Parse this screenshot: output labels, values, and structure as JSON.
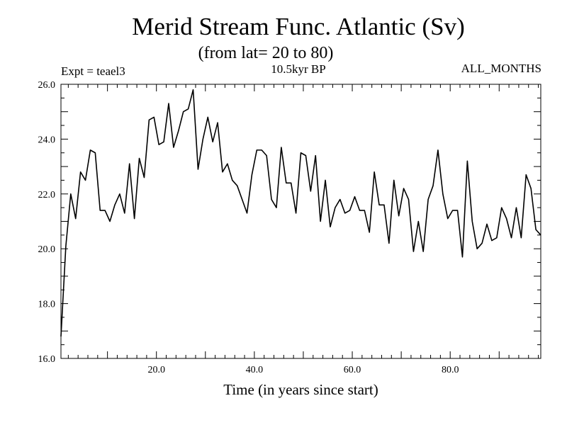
{
  "chart_data": {
    "type": "line",
    "title": "Merid Stream Func. Atlantic (Sv)",
    "subtitle": "(from lat= 20 to 80)",
    "experiment": "Expt = teael3",
    "period": "10.5kyr BP",
    "months": "ALL_MONTHS",
    "xlabel": "Time (in years since start)",
    "ylabel": "",
    "xlim": [
      0.5,
      98.5
    ],
    "ylim": [
      16.0,
      26.0
    ],
    "x_ticks": [
      20,
      40,
      60,
      80
    ],
    "x_tick_labels": [
      "20.0",
      "40.0",
      "60.0",
      "80.0"
    ],
    "y_ticks": [
      16,
      18,
      20,
      22,
      24,
      26
    ],
    "y_tick_labels": [
      "16.0",
      "18.0",
      "20.0",
      "22.0",
      "24.0",
      "26.0"
    ],
    "grid": false,
    "series": [
      {
        "name": "teael3",
        "x_start": 0.5,
        "x_step": 1,
        "values": [
          16.8,
          20.1,
          22.0,
          21.1,
          22.8,
          22.5,
          23.6,
          23.5,
          21.4,
          21.4,
          21.0,
          21.6,
          22.0,
          21.3,
          23.1,
          21.1,
          23.3,
          22.6,
          24.7,
          24.8,
          23.8,
          23.9,
          25.3,
          23.7,
          24.3,
          25.0,
          25.1,
          25.8,
          22.9,
          24.0,
          24.8,
          23.9,
          24.6,
          22.8,
          23.1,
          22.5,
          22.3,
          21.8,
          21.3,
          22.7,
          23.6,
          23.6,
          23.4,
          21.8,
          21.5,
          23.7,
          22.4,
          22.4,
          21.3,
          23.5,
          23.4,
          22.1,
          23.4,
          21.0,
          22.5,
          20.8,
          21.5,
          21.8,
          21.3,
          21.4,
          21.9,
          21.4,
          21.4,
          20.6,
          22.8,
          21.6,
          21.6,
          20.2,
          22.5,
          21.2,
          22.2,
          21.8,
          19.9,
          21.0,
          19.9,
          21.8,
          22.3,
          23.6,
          22.0,
          21.1,
          21.4,
          21.4,
          19.7,
          23.2,
          21.0,
          20.0,
          20.2,
          20.9,
          20.3,
          20.4,
          21.5,
          21.1,
          20.4,
          21.5,
          20.4,
          22.7,
          22.2,
          20.7,
          20.5
        ]
      }
    ]
  }
}
